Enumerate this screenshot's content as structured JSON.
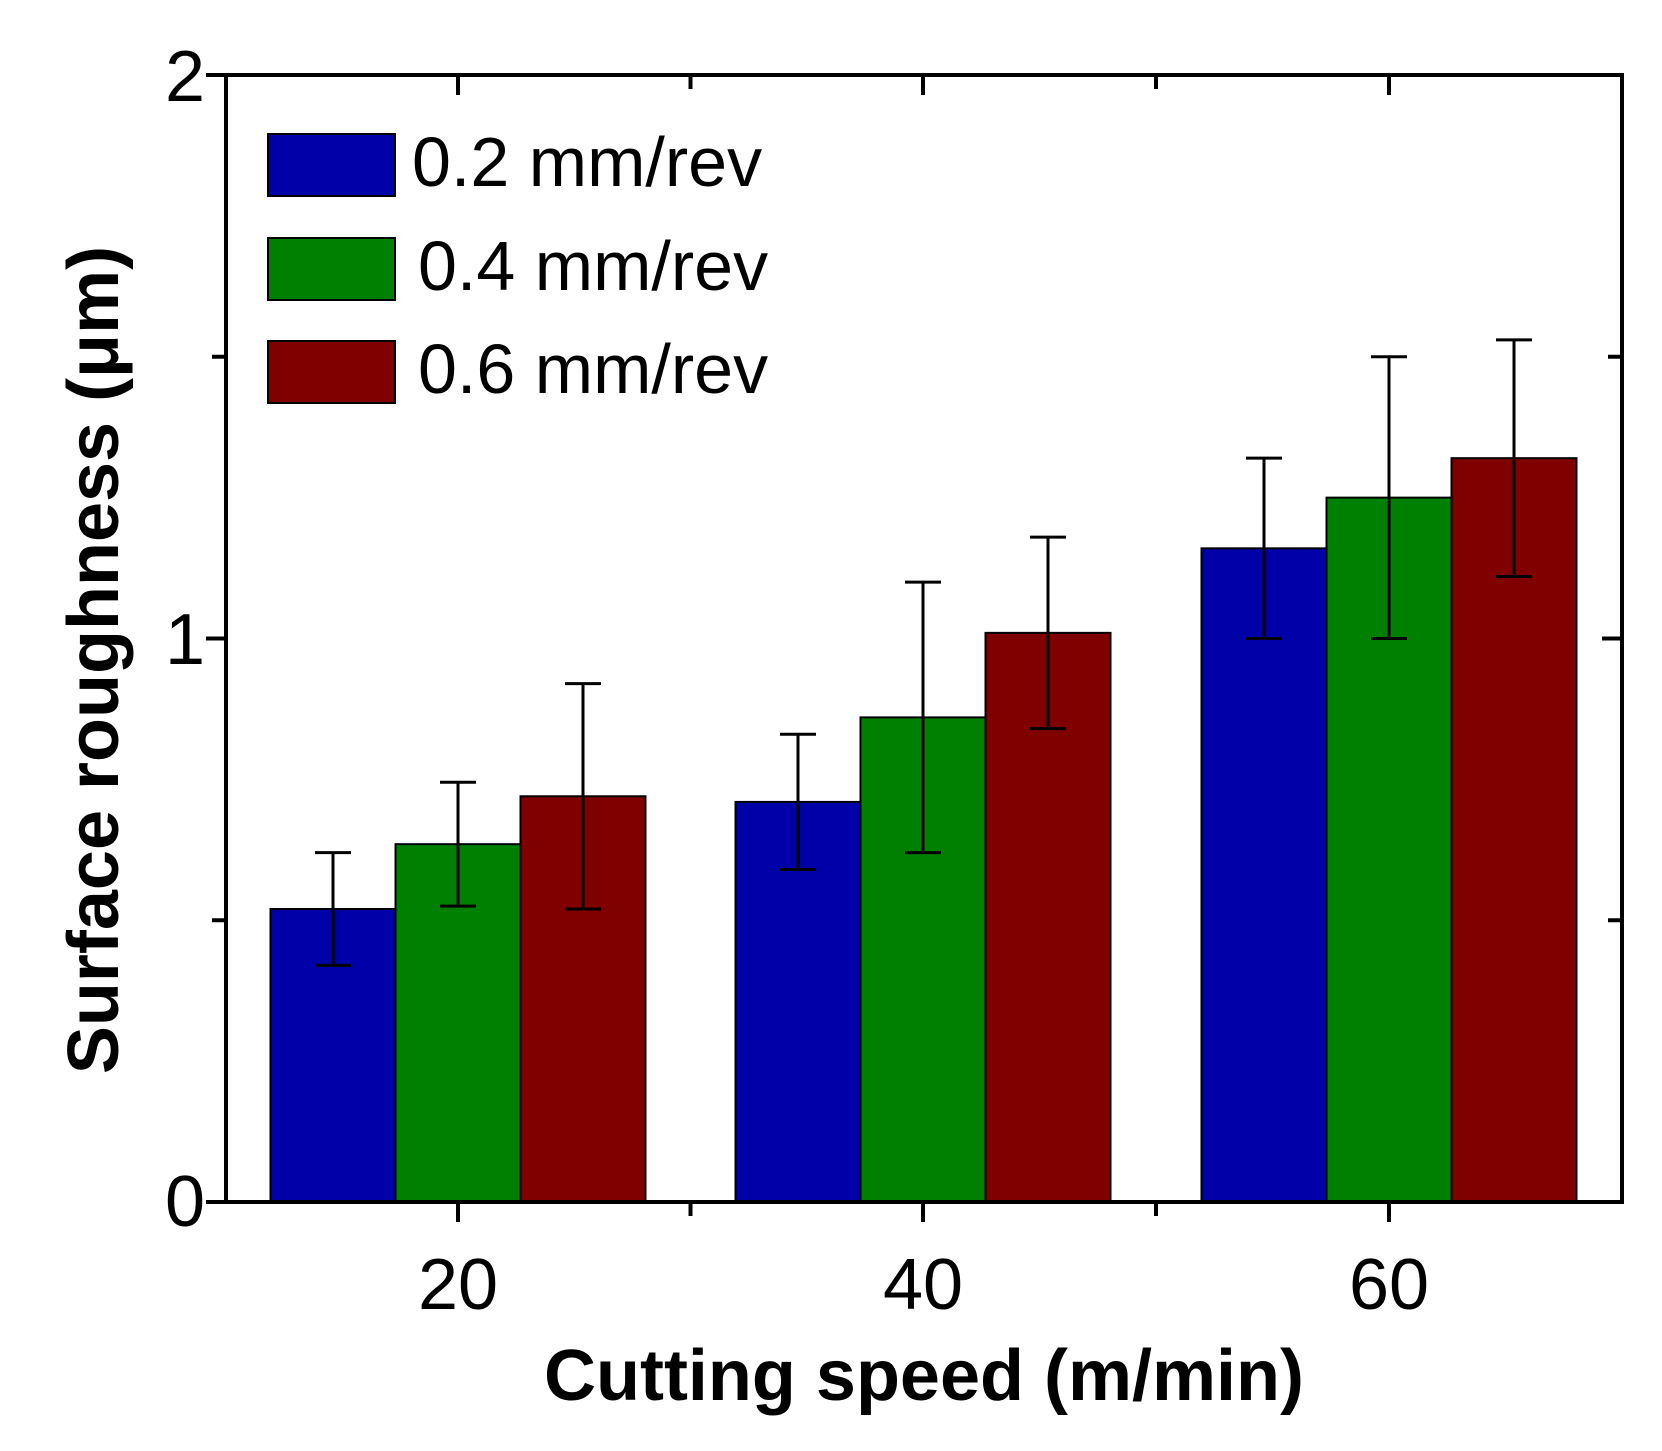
{
  "chart_data": {
    "type": "bar",
    "title": "",
    "xlabel": "Cutting speed (m/min)",
    "ylabel": "Surface roughness (μm)",
    "categories": [
      "20",
      "40",
      "60"
    ],
    "ylim": [
      0,
      2
    ],
    "y_ticks": [
      "0",
      "1",
      "2"
    ],
    "legend_position": "top-left",
    "grid": false,
    "series": [
      {
        "name": "0.2 mm/rev",
        "color": "#0000a8",
        "values": [
          0.52,
          0.71,
          1.16
        ],
        "errors": [
          0.1,
          0.12,
          0.16
        ]
      },
      {
        "name": "0.4 mm/rev",
        "color": "#008000",
        "values": [
          0.635,
          0.86,
          1.25
        ],
        "errors": [
          0.11,
          0.24,
          0.25
        ]
      },
      {
        "name": "0.6 mm/rev",
        "color": "#800000",
        "values": [
          0.72,
          1.01,
          1.32
        ],
        "errors": [
          0.2,
          0.17,
          0.21
        ]
      }
    ]
  }
}
